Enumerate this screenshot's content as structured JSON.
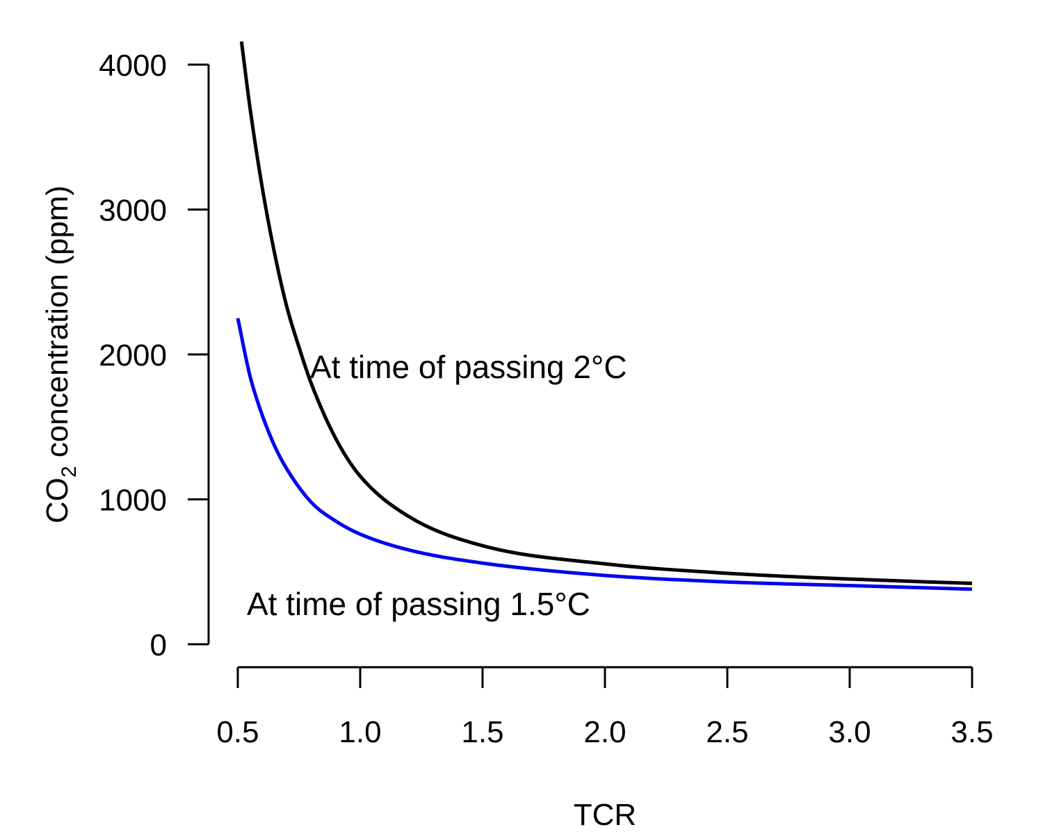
{
  "chart_data": {
    "type": "line",
    "xlabel": "TCR",
    "ylabel": {
      "prefix": "CO",
      "subscript": "2",
      "suffix": " concentration (ppm)"
    },
    "xlim": [
      0.5,
      3.5
    ],
    "ylim": [
      0,
      4000
    ],
    "x_ticks": [
      "0.5",
      "1.0",
      "1.5",
      "2.0",
      "2.5",
      "3.0",
      "3.5"
    ],
    "y_ticks": [
      "0",
      "1000",
      "2000",
      "3000",
      "4000"
    ],
    "grid": false,
    "legend": "none",
    "series": [
      {
        "label": "At time of passing 2°C",
        "color": "#000000",
        "x": [
          0.515,
          0.55,
          0.6,
          0.65,
          0.7,
          0.75,
          0.8,
          0.9,
          1.0,
          1.2,
          1.5,
          2.0,
          2.5,
          3.0,
          3.5
        ],
        "y": [
          4160,
          3700,
          3150,
          2700,
          2330,
          2050,
          1800,
          1420,
          1160,
          880,
          680,
          555,
          490,
          450,
          420
        ]
      },
      {
        "label": "At time of passing 1.5°C",
        "color": "#0000ee",
        "x": [
          0.5,
          0.55,
          0.6,
          0.65,
          0.7,
          0.8,
          0.9,
          1.0,
          1.2,
          1.5,
          2.0,
          2.5,
          3.0,
          3.5
        ],
        "y": [
          2250,
          1850,
          1580,
          1370,
          1210,
          980,
          850,
          760,
          650,
          560,
          475,
          430,
          405,
          380
        ]
      }
    ]
  }
}
